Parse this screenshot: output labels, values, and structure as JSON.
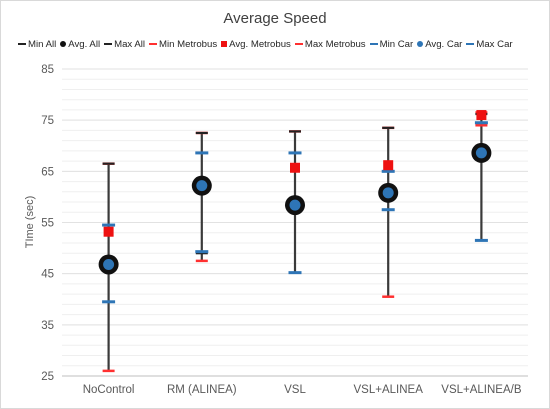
{
  "chart_data": {
    "type": "scatter",
    "title": "Average Speed",
    "ylabel": "TIme (sec)",
    "xlabel": "",
    "ylim": [
      25,
      85
    ],
    "yticks": [
      25,
      35,
      45,
      55,
      65,
      75,
      85
    ],
    "grid": true,
    "legend_position": "top",
    "categories": [
      "NoControl",
      "RM (ALINEA)",
      "VSL",
      "VSL+ALINEA",
      "VSL+ALINEA/B"
    ],
    "series": [
      {
        "name": "Min All",
        "marker": "dash",
        "color": "#222222",
        "values": [
          39.5,
          49.0,
          45.2,
          57.5,
          51.5
        ]
      },
      {
        "name": "Avg. All",
        "marker": "circle-large",
        "color": "#111111",
        "values": [
          46.8,
          62.2,
          58.4,
          60.8,
          68.6
        ]
      },
      {
        "name": "Max All",
        "marker": "dash",
        "color": "#222222",
        "values": [
          66.5,
          72.5,
          72.8,
          73.5,
          76.2
        ]
      },
      {
        "name": "Min Metrobus",
        "marker": "dash",
        "color": "#ff3030",
        "values": [
          26.0,
          47.5,
          57.8,
          40.5,
          74.0
        ]
      },
      {
        "name": "Avg. Metrobus",
        "marker": "square",
        "color": "#ee1111",
        "values": [
          53.2,
          62.8,
          65.7,
          66.2,
          76.0
        ]
      },
      {
        "name": "Max Metrobus",
        "marker": "dash",
        "color": "#ff3030",
        "values": [
          66.5,
          72.5,
          72.8,
          73.5,
          76.5
        ]
      },
      {
        "name": "Min Car",
        "marker": "dash",
        "color": "#2e75b6",
        "values": [
          39.5,
          49.3,
          45.2,
          57.5,
          51.5
        ]
      },
      {
        "name": "Avg. Car",
        "marker": "circle",
        "color": "#2e75b6",
        "values": [
          46.8,
          62.2,
          58.4,
          60.8,
          68.6
        ]
      },
      {
        "name": "Max Car",
        "marker": "dash",
        "color": "#2e75b6",
        "values": [
          54.5,
          68.6,
          68.6,
          65.0,
          74.5
        ]
      }
    ]
  }
}
